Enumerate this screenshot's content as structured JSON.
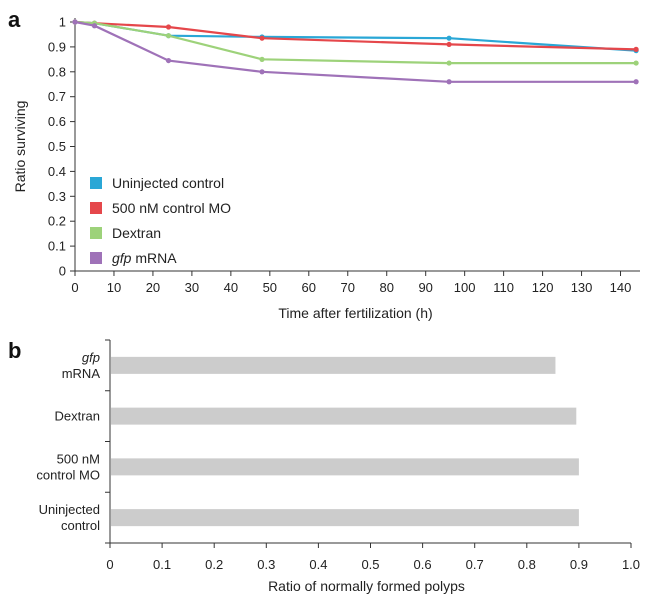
{
  "chart_data": [
    {
      "panel": "a",
      "type": "line",
      "xlabel": "Time after fertilization (h)",
      "ylabel": "Ratio surviving",
      "xlim": [
        0,
        145
      ],
      "ylim": [
        0,
        1
      ],
      "xticks": [
        "0",
        "10",
        "20",
        "30",
        "40",
        "50",
        "60",
        "70",
        "80",
        "90",
        "100",
        "110",
        "120",
        "130",
        "140"
      ],
      "yticks": [
        "0",
        "0.1",
        "0.2",
        "0.3",
        "0.4",
        "0.5",
        "0.6",
        "0.7",
        "0.8",
        "0.9",
        "1"
      ],
      "legend_position": "bottom-left",
      "series": [
        {
          "name": "Uninjected control",
          "color": "#2aa7d6",
          "x": [
            0,
            5,
            24,
            48,
            96,
            144
          ],
          "y": [
            1.0,
            0.995,
            0.945,
            0.94,
            0.935,
            0.885
          ]
        },
        {
          "name": "500 nM control MO",
          "color": "#e5474b",
          "x": [
            0,
            5,
            24,
            48,
            96,
            144
          ],
          "y": [
            1.0,
            0.995,
            0.98,
            0.935,
            0.91,
            0.89
          ]
        },
        {
          "name": "Dextran",
          "color": "#9dd27a",
          "x": [
            0,
            5,
            24,
            48,
            96,
            144
          ],
          "y": [
            1.0,
            0.995,
            0.945,
            0.85,
            0.835,
            0.835
          ]
        },
        {
          "name": "gfp mRNA",
          "color": "#9f72b8",
          "x": [
            0,
            5,
            24,
            48,
            96,
            144
          ],
          "y": [
            1.0,
            0.985,
            0.845,
            0.8,
            0.76,
            0.76
          ]
        }
      ]
    },
    {
      "panel": "b",
      "type": "bar",
      "orientation": "horizontal",
      "xlabel": "Ratio of normally formed polyps",
      "xlim": [
        0,
        1
      ],
      "xticks": [
        "0",
        "0.1",
        "0.2",
        "0.3",
        "0.4",
        "0.5",
        "0.6",
        "0.7",
        "0.8",
        "0.9",
        "1.0"
      ],
      "bar_color": "#cccccc",
      "categories": [
        {
          "lines": [
            "gfp",
            "mRNA"
          ],
          "italic_first": true
        },
        {
          "lines": [
            "Dextran"
          ],
          "italic_first": false
        },
        {
          "lines": [
            "500 nM",
            "control MO"
          ],
          "italic_first": false
        },
        {
          "lines": [
            "Uninjected",
            "control"
          ],
          "italic_first": false
        }
      ],
      "values": [
        0.855,
        0.895,
        0.9,
        0.9
      ]
    }
  ]
}
